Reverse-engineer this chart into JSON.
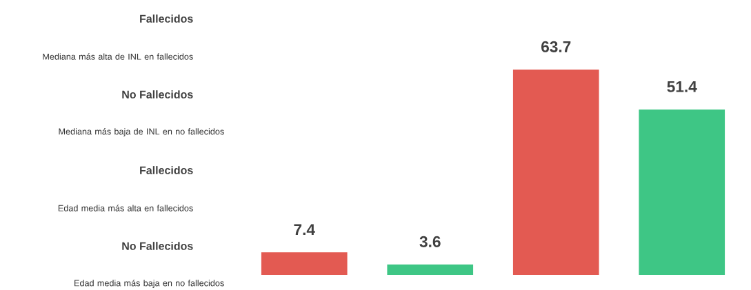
{
  "chart_data": {
    "type": "bar",
    "categories": [
      null,
      null,
      null,
      null
    ],
    "values": [
      7.4,
      3.6,
      63.7,
      51.4
    ],
    "colors": [
      "#e35a52",
      "#3ec685",
      "#e35a52",
      "#3ec685"
    ],
    "data_labels": true,
    "annotations": [
      "Fallecidos",
      "Mediana más alta de INL en fallecidos",
      "No Fallecidos",
      "Mediana más baja de INL en no fallecidos",
      "Fallecidos",
      "Edad media más alta en fallecidos",
      "No Fallecidos",
      "Edad media más baja en no fallecidos"
    ]
  }
}
